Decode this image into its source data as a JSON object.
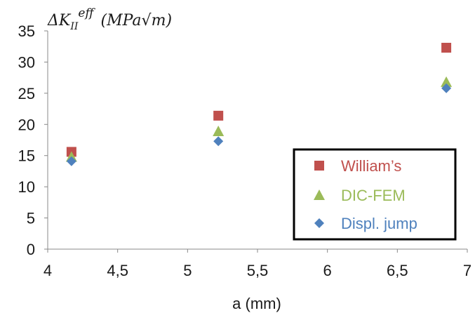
{
  "chart_data": {
    "type": "scatter",
    "xlabel": "a (mm)",
    "ylabel": {
      "delta": "ΔK",
      "subscript": "II",
      "superscript": "eff",
      "units_open": "(MPa",
      "units_root": "m",
      "units_close": ")"
    },
    "xlim": [
      4,
      7
    ],
    "ylim": [
      0,
      35
    ],
    "xticks": [
      "4",
      "4,5",
      "5",
      "5,5",
      "6",
      "6,5",
      "7"
    ],
    "xtick_values": [
      4,
      4.5,
      5,
      5.5,
      6,
      6.5,
      7
    ],
    "yticks": [
      "0",
      "5",
      "10",
      "15",
      "20",
      "25",
      "30",
      "35"
    ],
    "ytick_values": [
      0,
      5,
      10,
      15,
      20,
      25,
      30,
      35
    ],
    "grid": false,
    "legend_position": "bottom-right",
    "series": [
      {
        "name": "William’s",
        "marker": "square",
        "color": "#c0504d",
        "x": [
          4.17,
          5.22,
          6.85
        ],
        "y": [
          15.6,
          21.4,
          32.3
        ]
      },
      {
        "name": "DIC-FEM",
        "marker": "triangle",
        "color": "#9bbb59",
        "x": [
          4.17,
          5.22,
          6.85
        ],
        "y": [
          14.8,
          18.9,
          26.8
        ]
      },
      {
        "name": "Displ. jump",
        "marker": "diamond",
        "color": "#4f81bd",
        "x": [
          4.17,
          5.22,
          6.85
        ],
        "y": [
          14.1,
          17.3,
          25.8
        ]
      }
    ]
  }
}
